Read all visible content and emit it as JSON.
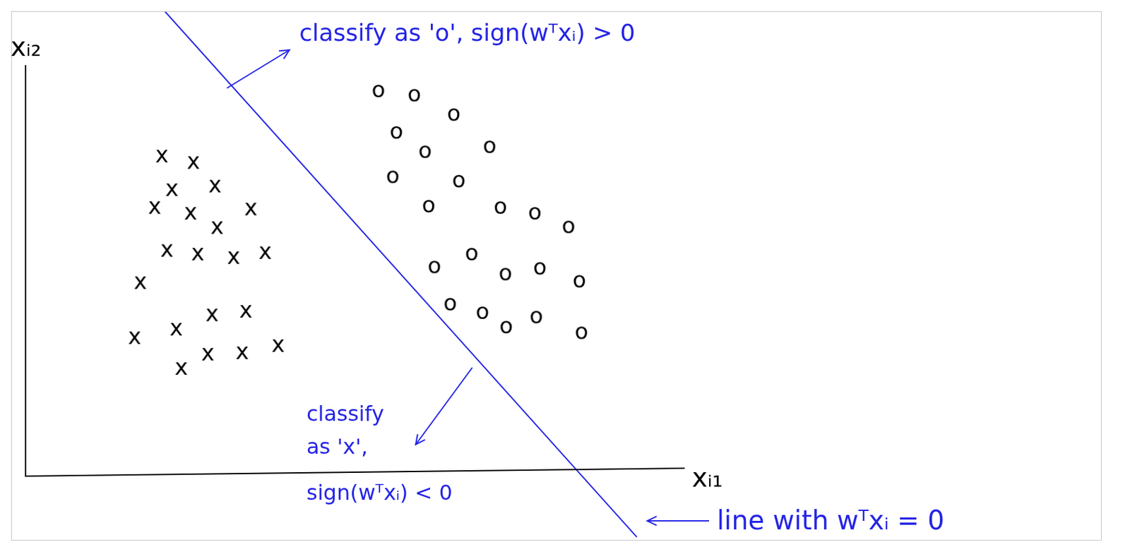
{
  "chart_data": {
    "type": "scatter",
    "x_label": "xᵢ₁",
    "y_label": "xᵢ₂",
    "xlim": [
      -2,
      150
    ],
    "ylim": [
      -9,
      65
    ],
    "tick_labels": false,
    "grid": false,
    "series": [
      {
        "name": "x",
        "color": "#000000",
        "x": [
          19.0,
          23.4,
          20.4,
          26.4,
          18.0,
          23.0,
          26.7,
          31.4,
          19.7,
          24.0,
          29.0,
          33.4,
          16.0,
          15.2,
          21.0,
          26.0,
          30.7,
          21.7,
          25.4,
          30.2,
          35.2
        ],
        "values": [
          44.7,
          43.8,
          40.0,
          40.5,
          37.5,
          36.7,
          34.7,
          37.3,
          31.5,
          31.0,
          30.5,
          31.2,
          27.0,
          19.3,
          20.5,
          22.5,
          23.0,
          15.0,
          17.0,
          17.2,
          18.2
        ]
      },
      {
        "name": "o",
        "color": "#000000",
        "x": [
          49.2,
          54.2,
          59.7,
          51.7,
          55.7,
          64.7,
          51.2,
          60.4,
          56.2,
          66.2,
          71.0,
          75.7,
          57.0,
          62.2,
          66.9,
          71.7,
          77.2,
          59.2,
          63.7,
          67.0,
          71.2,
          77.5
        ],
        "values": [
          53.8,
          53.2,
          50.5,
          48.0,
          45.3,
          46.0,
          41.8,
          41.2,
          37.7,
          37.5,
          36.7,
          34.8,
          29.2,
          31.0,
          28.2,
          29.0,
          27.2,
          24.0,
          22.8,
          20.8,
          22.2,
          20.0
        ]
      },
      {
        "type": "line",
        "color": "#2424e6",
        "x": [
          19.4,
          85.2
        ],
        "values": [
          65,
          -8.5
        ]
      }
    ],
    "annotations": [
      {
        "text": "classify as 'o', sign(wᵀxᵢ) > 0"
      },
      {
        "lines": [
          "classify",
          "as 'x',",
          "sign(wᵀxᵢ) < 0"
        ]
      },
      {
        "text": "line with wᵀxᵢ = 0"
      }
    ]
  }
}
